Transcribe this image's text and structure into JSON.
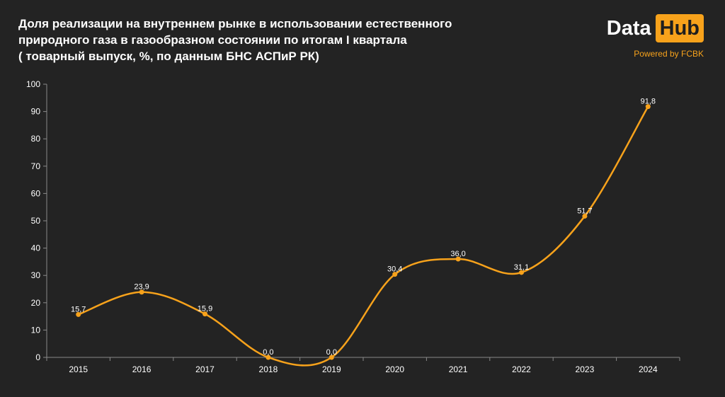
{
  "header": {
    "title_lines": [
      "Доля реализации на внутреннем рынке в использовании естественного",
      "природного газа в газообразном состоянии по итогам I квартала",
      "( товарный выпуск, %, по данным БНС АСПиР РК)"
    ]
  },
  "brand": {
    "logo_left": "Data",
    "logo_right": "Hub",
    "tagline": "Powered by FCBK"
  },
  "colors": {
    "background": "#232323",
    "line": "#f7a21b",
    "axis": "#8a8a8a",
    "text": "#ffffff"
  },
  "chart_data": {
    "type": "line",
    "smooth": true,
    "title": "",
    "xlabel": "",
    "ylabel": "",
    "categories": [
      "2015",
      "2016",
      "2017",
      "2018",
      "2019",
      "2020",
      "2021",
      "2022",
      "2023",
      "2024"
    ],
    "values": [
      15.7,
      23.9,
      15.9,
      0.0,
      0.0,
      30.4,
      36.0,
      31.1,
      51.7,
      91.8
    ],
    "data_labels": [
      "15,7",
      "23,9",
      "15,9",
      "0,0",
      "0,0",
      "30,4",
      "36,0",
      "31,1",
      "51,7",
      "91,8"
    ],
    "ylim": [
      0,
      100
    ],
    "yticks": [
      0,
      10,
      20,
      30,
      40,
      50,
      60,
      70,
      80,
      90,
      100
    ],
    "grid": false,
    "legend": "none"
  }
}
